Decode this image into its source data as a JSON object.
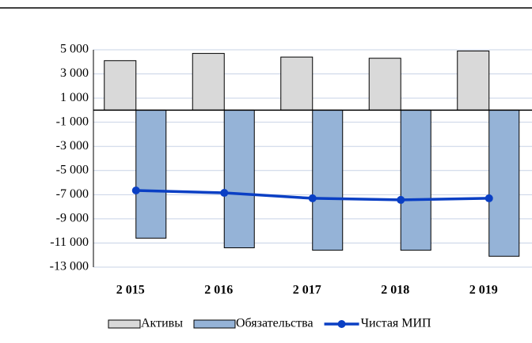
{
  "chart_data": {
    "type": "bar",
    "categories": [
      "2 015",
      "2 016",
      "2 017",
      "2 018",
      "2 019"
    ],
    "series": [
      {
        "name": "Активы",
        "color": "#d9d9d9",
        "values": [
          4100,
          4700,
          4400,
          4300,
          4900
        ]
      },
      {
        "name": "Обязательства",
        "color": "#95b3d7",
        "values": [
          -10600,
          -11400,
          -11600,
          -11600,
          -12100
        ]
      },
      {
        "name": "Чистая МИП",
        "type": "line",
        "color": "#0a3fc4",
        "values": [
          -6650,
          -6850,
          -7300,
          -7430,
          -7300
        ]
      }
    ],
    "ylim": [
      -13000,
      5000
    ],
    "yticks": [
      {
        "value": 5000,
        "label": "5 000"
      },
      {
        "value": 3000,
        "label": "3 000"
      },
      {
        "value": 1000,
        "label": "1 000"
      },
      {
        "value": -1000,
        "label": "-1 000"
      },
      {
        "value": -3000,
        "label": "-3 000"
      },
      {
        "value": -5000,
        "label": "-5 000"
      },
      {
        "value": -7000,
        "label": "-7 000"
      },
      {
        "value": -9000,
        "label": "-9 000"
      },
      {
        "value": -11000,
        "label": "-11 000"
      },
      {
        "value": -13000,
        "label": "-13 000"
      }
    ],
    "grid": true,
    "legend": "bottom"
  }
}
